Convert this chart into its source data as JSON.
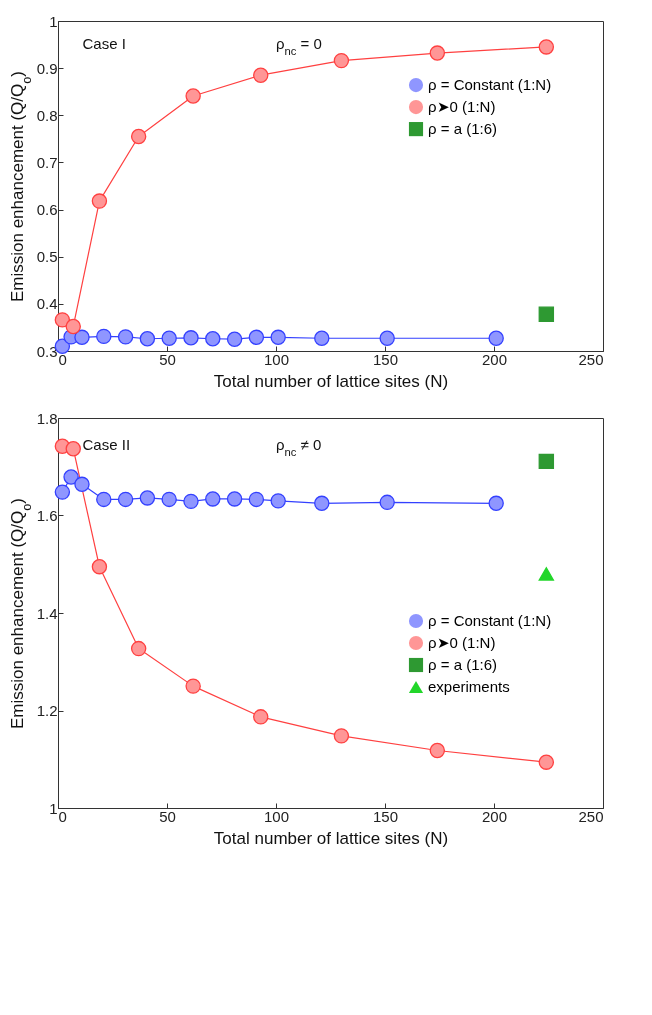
{
  "chart_data": [
    {
      "type": "line",
      "xlabel": "Total number of lattice sites (N)",
      "ylabel": "Emission enhancement (Q/Q$_{o}$)",
      "annotations": [
        "Case I",
        "ρ$_{nc}$ = 0"
      ],
      "xlim": [
        0,
        250
      ],
      "xticks": [
        0,
        50,
        100,
        150,
        200,
        250
      ],
      "ylim": [
        0.3,
        1
      ],
      "yticks": [
        0.3,
        0.4,
        0.5,
        0.6,
        0.7,
        0.8,
        0.9,
        {
          "value": 1,
          "label": "1"
        }
      ],
      "grid": false,
      "legend": "top right",
      "series": [
        {
          "name": "ρ = Constant (1:N)",
          "type": "line",
          "marker": "circle",
          "color": "#3340ff",
          "x": [
            2,
            6,
            11,
            21,
            31,
            41,
            51,
            61,
            71,
            81,
            91,
            101,
            121,
            151,
            201
          ],
          "values": [
            0.31,
            0.33,
            0.329,
            0.331,
            0.33,
            0.326,
            0.327,
            0.328,
            0.326,
            0.325,
            0.329,
            0.329,
            0.327,
            0.327,
            0.327
          ]
        },
        {
          "name": "ρ➤0 (1:N)",
          "type": "line",
          "marker": "circle",
          "color": "#ff4040",
          "x": [
            2,
            7,
            19,
            37,
            62,
            93,
            130,
            174,
            224
          ],
          "values": [
            0.366,
            0.352,
            0.618,
            0.755,
            0.841,
            0.885,
            0.916,
            0.932,
            0.945
          ]
        },
        {
          "name": "ρ = a (1:6)",
          "type": "scatter",
          "marker": "square",
          "color": "#2e9932",
          "x": [
            224
          ],
          "values": [
            0.378
          ]
        }
      ]
    },
    {
      "type": "line",
      "xlabel": "Total number of lattice sites (N)",
      "ylabel": "Emission enhancement (Q/Q$_{o}$)",
      "annotations": [
        "Case II",
        "ρ$_{nc}$ ≠ 0"
      ],
      "xlim": [
        0,
        250
      ],
      "xticks": [
        0,
        50,
        100,
        150,
        200,
        250
      ],
      "ylim": [
        1,
        1.8
      ],
      "yticks": [
        {
          "value": 1,
          "label": "1"
        },
        1.2,
        1.4,
        1.6,
        1.8
      ],
      "grid": false,
      "legend": "right",
      "series": [
        {
          "name": "ρ = Constant (1:N)",
          "type": "line",
          "marker": "circle",
          "color": "#3340ff",
          "x": [
            2,
            6,
            11,
            21,
            31,
            41,
            51,
            61,
            71,
            81,
            91,
            101,
            121,
            151,
            201
          ],
          "values": [
            1.648,
            1.679,
            1.664,
            1.633,
            1.633,
            1.636,
            1.633,
            1.629,
            1.634,
            1.634,
            1.633,
            1.63,
            1.625,
            1.627,
            1.625
          ]
        },
        {
          "name": "ρ➤0 (1:N)",
          "type": "line",
          "marker": "circle",
          "color": "#ff4040",
          "x": [
            2,
            7,
            19,
            37,
            62,
            93,
            130,
            174,
            224
          ],
          "values": [
            1.742,
            1.737,
            1.495,
            1.327,
            1.25,
            1.187,
            1.148,
            1.118,
            1.094
          ]
        },
        {
          "name": "ρ = a (1:6)",
          "type": "scatter",
          "marker": "square",
          "color": "#2e9932",
          "x": [
            224
          ],
          "values": [
            1.711
          ]
        },
        {
          "name": "experiments",
          "type": "scatter",
          "marker": "triangle",
          "color": "#22d62a",
          "x": [
            224
          ],
          "values": [
            1.48
          ]
        }
      ]
    }
  ]
}
